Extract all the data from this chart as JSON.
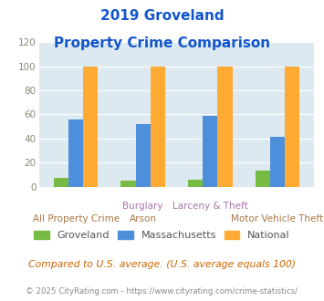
{
  "title_line1": "2019 Groveland",
  "title_line2": "Property Crime Comparison",
  "series": {
    "Groveland": [
      7,
      5,
      6,
      13
    ],
    "Massachusetts": [
      56,
      52,
      59,
      41
    ],
    "National": [
      100,
      100,
      100,
      100
    ]
  },
  "colors": {
    "Groveland": "#77bb44",
    "Massachusetts": "#4d8fdb",
    "National": "#ffaa33"
  },
  "ylim": [
    0,
    120
  ],
  "yticks": [
    0,
    20,
    40,
    60,
    80,
    100,
    120
  ],
  "bg_color": "#dce9f0",
  "title_color": "#1155cc",
  "xlabel_color_top": "#aa77aa",
  "xlabel_color_bottom": "#aa7744",
  "footer_note": "Compared to U.S. average. (U.S. average equals 100)",
  "footer_credit": "© 2025 CityRating.com - https://www.cityrating.com/crime-statistics/",
  "footer_note_color": "#cc6600",
  "footer_credit_color": "#888888",
  "top_labels": [
    "",
    "Burglary",
    "Larceny & Theft",
    ""
  ],
  "bottom_labels": [
    "All Property Crime",
    "Arson",
    "",
    "Motor Vehicle Theft"
  ],
  "legend_labels": [
    "Groveland",
    "Massachusetts",
    "National"
  ]
}
